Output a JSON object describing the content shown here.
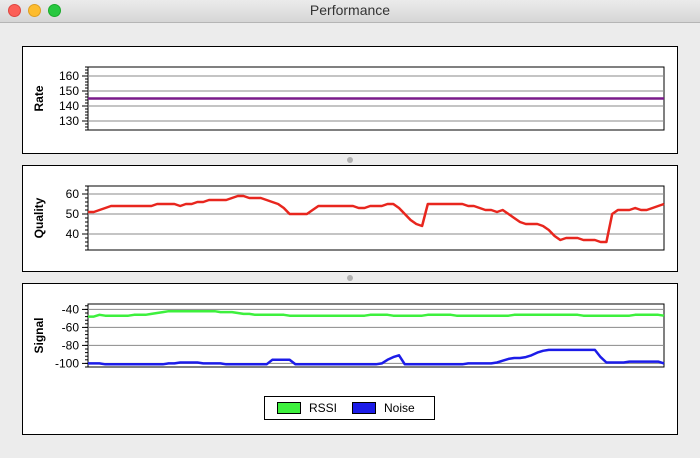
{
  "window": {
    "title": "Performance"
  },
  "chart_data": [
    {
      "type": "line",
      "ylabel": "Rate",
      "yticks": [
        130,
        140,
        150,
        160
      ],
      "ylim": [
        124,
        166
      ],
      "grid": true,
      "series": [
        {
          "color": "#7a1b8a",
          "values": [
            145,
            145,
            145,
            145,
            145,
            145,
            145,
            145,
            145,
            145,
            145,
            145,
            145,
            145,
            145,
            145,
            145,
            145,
            145,
            145,
            145,
            145,
            145,
            145,
            145,
            145,
            145,
            145,
            145,
            145,
            145,
            145,
            145,
            145,
            145,
            145,
            145,
            145,
            145,
            145,
            145,
            145,
            145,
            145,
            145,
            145,
            145,
            145,
            145,
            145,
            145,
            145,
            145,
            145,
            145,
            145,
            145,
            145,
            145,
            145,
            145,
            145,
            145,
            145,
            145,
            145,
            145,
            145,
            145,
            145,
            145,
            145,
            145,
            145,
            145,
            145,
            145,
            145,
            145,
            145,
            145,
            145,
            145,
            145,
            145,
            145,
            145,
            145,
            145,
            145,
            145
          ]
        }
      ]
    },
    {
      "type": "line",
      "ylabel": "Quality",
      "yticks": [
        40,
        50,
        60
      ],
      "ylim": [
        32,
        64
      ],
      "grid": true,
      "series": [
        {
          "color": "#e8261e",
          "values": [
            51,
            51,
            52,
            53,
            54,
            54,
            54,
            54,
            54,
            54,
            54,
            54,
            55,
            55,
            55,
            55,
            54,
            55,
            55,
            56,
            56,
            57,
            57,
            57,
            57,
            58,
            59,
            59,
            58,
            58,
            58,
            57,
            56,
            55,
            53,
            50,
            50,
            50,
            50,
            52,
            54,
            54,
            54,
            54,
            54,
            54,
            54,
            53,
            53,
            54,
            54,
            54,
            55,
            55,
            53,
            50,
            47,
            45,
            44,
            55,
            55,
            55,
            55,
            55,
            55,
            55,
            54,
            54,
            53,
            52,
            52,
            51,
            52,
            50,
            48,
            46,
            45,
            45,
            45,
            44,
            42,
            39,
            37,
            38,
            38,
            38,
            37,
            37,
            37,
            36,
            36,
            50,
            52,
            52,
            52,
            53,
            52,
            52,
            53,
            54,
            55
          ]
        }
      ]
    },
    {
      "type": "line",
      "ylabel": "Signal",
      "yticks": [
        -40,
        -60,
        -80,
        -100
      ],
      "ylim": [
        -104,
        -34
      ],
      "grid": true,
      "series": [
        {
          "name": "RSSI",
          "color": "#3df03d",
          "values": [
            -48,
            -48,
            -46,
            -47,
            -47,
            -47,
            -47,
            -47,
            -46,
            -46,
            -46,
            -45,
            -44,
            -43,
            -42,
            -42,
            -42,
            -42,
            -42,
            -42,
            -42,
            -42,
            -42,
            -43,
            -43,
            -43,
            -44,
            -45,
            -45,
            -46,
            -46,
            -46,
            -46,
            -46,
            -46,
            -47,
            -47,
            -47,
            -47,
            -47,
            -47,
            -47,
            -47,
            -47,
            -47,
            -47,
            -47,
            -47,
            -47,
            -46,
            -46,
            -46,
            -46,
            -47,
            -47,
            -47,
            -47,
            -47,
            -47,
            -46,
            -46,
            -46,
            -46,
            -46,
            -47,
            -47,
            -47,
            -47,
            -47,
            -47,
            -47,
            -47,
            -47,
            -47,
            -46,
            -46,
            -46,
            -46,
            -46,
            -46,
            -46,
            -46,
            -46,
            -46,
            -46,
            -46,
            -47,
            -47,
            -47,
            -47,
            -47,
            -47,
            -47,
            -47,
            -47,
            -46,
            -46,
            -46,
            -46,
            -46,
            -47
          ]
        },
        {
          "name": "Noise",
          "color": "#1c1ce8",
          "values": [
            -100,
            -100,
            -100,
            -101,
            -101,
            -101,
            -101,
            -101,
            -101,
            -101,
            -101,
            -101,
            -101,
            -101,
            -100,
            -100,
            -99,
            -99,
            -99,
            -99,
            -100,
            -100,
            -100,
            -100,
            -101,
            -101,
            -101,
            -101,
            -101,
            -101,
            -101,
            -101,
            -96,
            -96,
            -96,
            -96,
            -101,
            -101,
            -101,
            -101,
            -101,
            -101,
            -101,
            -101,
            -101,
            -101,
            -101,
            -101,
            -101,
            -101,
            -101,
            -100,
            -96,
            -93,
            -91,
            -101,
            -101,
            -101,
            -101,
            -101,
            -101,
            -101,
            -101,
            -101,
            -101,
            -101,
            -100,
            -100,
            -100,
            -100,
            -100,
            -99,
            -97,
            -95,
            -94,
            -94,
            -93,
            -91,
            -88,
            -86,
            -85,
            -85,
            -85,
            -85,
            -85,
            -85,
            -85,
            -85,
            -85,
            -93,
            -99,
            -99,
            -99,
            -99,
            -98,
            -98,
            -98,
            -98,
            -98,
            -98,
            -100
          ]
        }
      ]
    }
  ],
  "legend": {
    "items": [
      {
        "label": "RSSI",
        "color": "#3df03d"
      },
      {
        "label": "Noise",
        "color": "#1c1ce8"
      }
    ]
  }
}
